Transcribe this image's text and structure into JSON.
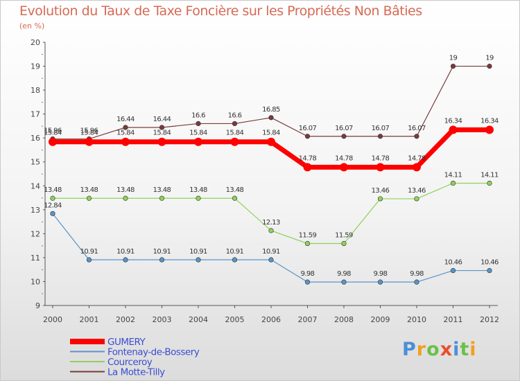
{
  "chart_data": {
    "type": "line",
    "title": "Evolution du Taux de Taxe Foncière sur les Propriétés Non Bâties",
    "ylabel": "(en %)",
    "xlabel": "",
    "ylim": [
      9,
      20
    ],
    "yticks": [
      "9",
      "10",
      "11",
      "12",
      "13",
      "14",
      "15",
      "16",
      "17",
      "18",
      "19",
      "20"
    ],
    "categories": [
      "2000",
      "2001",
      "2002",
      "2003",
      "2004",
      "2005",
      "2006",
      "2007",
      "2008",
      "2009",
      "2010",
      "2011",
      "2012"
    ],
    "series": [
      {
        "name": "GUMERY",
        "color": "#ff0000",
        "values": [
          15.84,
          15.84,
          15.84,
          15.84,
          15.84,
          15.84,
          15.84,
          14.78,
          14.78,
          14.78,
          14.78,
          16.34,
          16.34
        ],
        "labels": [
          "15.84",
          "15.84",
          "15.84",
          "15.84",
          "15.84",
          "15.84",
          "15.84",
          "14.78",
          "14.78",
          "14.78",
          "14.78",
          "16.34",
          "16.34"
        ]
      },
      {
        "name": "Fontenay-de-Bossery",
        "color": "#5a94c8",
        "values": [
          12.84,
          10.91,
          10.91,
          10.91,
          10.91,
          10.91,
          10.91,
          9.98,
          9.98,
          9.98,
          9.98,
          10.46,
          10.46
        ],
        "labels": [
          "12.84",
          "10.91",
          "10.91",
          "10.91",
          "10.91",
          "10.91",
          "10.91",
          "9.98",
          "9.98",
          "9.98",
          "9.98",
          "10.46",
          "10.46"
        ]
      },
      {
        "name": "Courceroy",
        "color": "#8fd15a",
        "values": [
          13.48,
          13.48,
          13.48,
          13.48,
          13.48,
          13.48,
          12.13,
          11.59,
          11.59,
          13.46,
          13.46,
          14.11,
          14.11
        ],
        "labels": [
          "13.48",
          "13.48",
          "13.48",
          "13.48",
          "13.48",
          "13.48",
          "12.13",
          "11.59",
          "11.59",
          "13.46",
          "13.46",
          "14.11",
          "14.11"
        ]
      },
      {
        "name": "La Motte-Tilly",
        "color": "#7a3b3b",
        "values": [
          15.96,
          15.96,
          16.44,
          16.44,
          16.6,
          16.6,
          16.85,
          16.07,
          16.07,
          16.07,
          16.07,
          19,
          19
        ],
        "labels": [
          "15.96",
          "15.96",
          "16.44",
          "16.44",
          "16.6",
          "16.6",
          "16.85",
          "16.07",
          "16.07",
          "16.07",
          "16.07",
          "19",
          "19"
        ]
      }
    ]
  },
  "logo": {
    "text": "Proxiti",
    "letters": [
      "P",
      "r",
      "o",
      "x",
      "i",
      "t",
      "i"
    ],
    "colors": [
      "#4a8fd6",
      "#f0a020",
      "#6cc04a",
      "#e94f2e",
      "#4a8fd6",
      "#6cc04a",
      "#f0a020"
    ]
  }
}
